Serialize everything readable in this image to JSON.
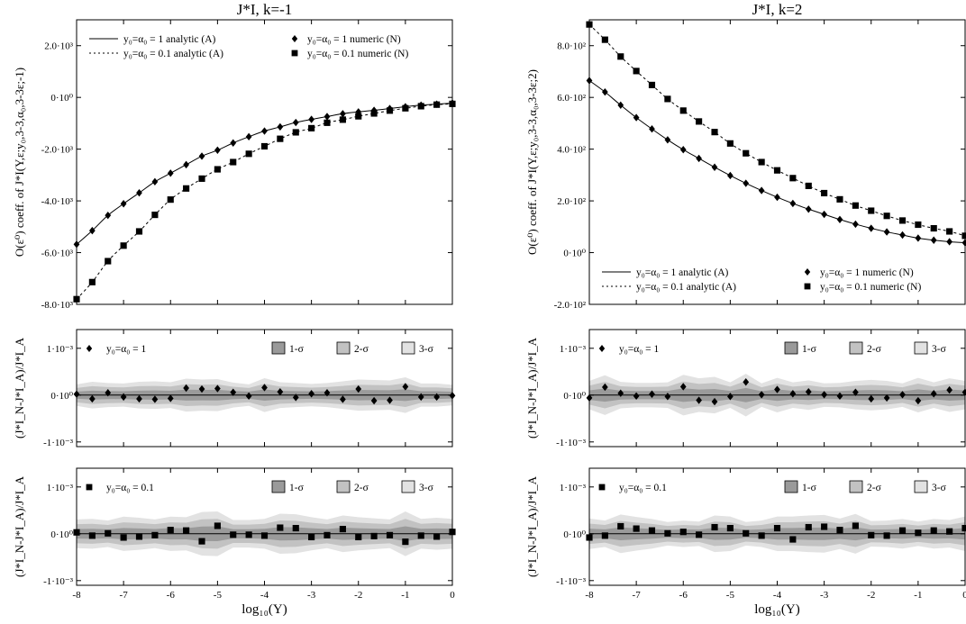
{
  "chart_data": [
    {
      "type": "line",
      "title": "J*I, k=-1",
      "xlabel": "",
      "ylabel": "O(ε⁰) coeff. of J*I(Y,ε;y₀,3-3,α₀,3-3ε;-1)",
      "xlim": [
        -8,
        0
      ],
      "ylim": [
        -8000,
        3000
      ],
      "yticks": [
        {
          "v": 2000,
          "label": "2.0·10³"
        },
        {
          "v": 0,
          "label": "0·10⁰"
        },
        {
          "v": -2000,
          "label": "-2.0·10³"
        },
        {
          "v": -4000,
          "label": "-4.0·10³"
        },
        {
          "v": -6000,
          "label": "-6.0·10³"
        },
        {
          "v": -8000,
          "label": "-8.0·10³"
        }
      ],
      "xticks": [],
      "legend_position": "top",
      "legend": [
        {
          "label": "y₀=α₀ = 1 analytic (A)",
          "style": "solid-line"
        },
        {
          "label": "y₀=α₀ = 0.1 analytic (A)",
          "style": "dotted-line"
        },
        {
          "label": "y₀=α₀ = 1 numeric (N)",
          "style": "diamond"
        },
        {
          "label": "y₀=α₀ = 0.1 numeric (N)",
          "style": "square"
        }
      ],
      "series": [
        {
          "name": "y₀=α₀ = 1 numeric (N)",
          "marker": "diamond",
          "line": "solid",
          "x": [
            -8,
            -7.667,
            -7.333,
            -7,
            -6.667,
            -6.333,
            -6,
            -5.667,
            -5.333,
            -5,
            -4.667,
            -4.333,
            -4,
            -3.667,
            -3.333,
            -3,
            -2.667,
            -2.333,
            -2,
            -1.667,
            -1.333,
            -1,
            -0.667,
            -0.333,
            0
          ],
          "y": [
            -5680,
            -5150,
            -4560,
            -4110,
            -3690,
            -3260,
            -2930,
            -2600,
            -2270,
            -2040,
            -1760,
            -1520,
            -1300,
            -1140,
            -970,
            -850,
            -740,
            -630,
            -560,
            -500,
            -430,
            -360,
            -300,
            -260,
            -220
          ]
        },
        {
          "name": "y₀=α₀ = 0.1 numeric (N)",
          "marker": "square",
          "line": "dotted",
          "x": [
            -8,
            -7.667,
            -7.333,
            -7,
            -6.667,
            -6.333,
            -6,
            -5.667,
            -5.333,
            -5,
            -4.667,
            -4.333,
            -4,
            -3.667,
            -3.333,
            -3,
            -2.667,
            -2.333,
            -2,
            -1.667,
            -1.333,
            -1,
            -0.667,
            -0.333,
            0
          ],
          "y": [
            -7800,
            -7140,
            -6330,
            -5730,
            -5180,
            -4540,
            -3950,
            -3520,
            -3140,
            -2780,
            -2500,
            -2180,
            -1890,
            -1600,
            -1350,
            -1190,
            -980,
            -860,
            -730,
            -620,
            -510,
            -420,
            -340,
            -280,
            -250
          ]
        }
      ]
    },
    {
      "type": "scatter",
      "title": "",
      "xlabel": "",
      "ylabel": "(J*I_N-J*I_A)/J*I_A",
      "xlim": [
        -8,
        0
      ],
      "ylim": [
        -1.1,
        1.4
      ],
      "y_scale_note": "values in units of 10⁻³",
      "yticks": [
        {
          "v": 1,
          "label": "1·10⁻³"
        },
        {
          "v": 0,
          "label": "0·10⁰"
        },
        {
          "v": -1,
          "label": "-1·10⁻³"
        }
      ],
      "xticks": [],
      "legend_position": "top",
      "legend": [
        {
          "label": "y₀=α₀ = 1",
          "style": "diamond"
        }
      ],
      "bands": [
        {
          "label": "1-σ",
          "color": "#9a9a9a"
        },
        {
          "label": "2-σ",
          "color": "#c2c2c2"
        },
        {
          "label": "3-σ",
          "color": "#e2e2e2"
        }
      ],
      "band_halfwidths": [
        0.07,
        0.14,
        0.21
      ],
      "series": [
        {
          "name": "y₀=α₀ = 1",
          "marker": "diamond",
          "x": [
            -8,
            -7.667,
            -7.333,
            -7,
            -6.667,
            -6.333,
            -6,
            -5.667,
            -5.333,
            -5,
            -4.667,
            -4.333,
            -4,
            -3.667,
            -3.333,
            -3,
            -2.667,
            -2.333,
            -2,
            -1.667,
            -1.333,
            -1,
            -0.667,
            -0.333,
            0
          ],
          "y": [
            0.02,
            -0.08,
            0.05,
            -0.04,
            -0.08,
            -0.09,
            -0.07,
            0.15,
            0.13,
            0.14,
            0.06,
            -0.02,
            0.16,
            0.07,
            -0.05,
            0.03,
            0.05,
            -0.09,
            0.13,
            -0.12,
            -0.11,
            0.18,
            -0.04,
            -0.04,
            -0.01
          ]
        }
      ]
    },
    {
      "type": "scatter",
      "title": "",
      "xlabel": "log₁₀(Y)",
      "ylabel": "(J*I_N-J*I_A)/J*I_A",
      "xlim": [
        -8,
        0
      ],
      "ylim": [
        -1.1,
        1.4
      ],
      "y_scale_note": "values in units of 10⁻³",
      "yticks": [
        {
          "v": 1,
          "label": "1·10⁻³"
        },
        {
          "v": 0,
          "label": "0·10⁰"
        },
        {
          "v": -1,
          "label": "-1·10⁻³"
        }
      ],
      "xticks": [
        {
          "v": -8,
          "label": "-8"
        },
        {
          "v": -7,
          "label": "-7"
        },
        {
          "v": -6,
          "label": "-6"
        },
        {
          "v": -5,
          "label": "-5"
        },
        {
          "v": -4,
          "label": "-4"
        },
        {
          "v": -3,
          "label": "-3"
        },
        {
          "v": -2,
          "label": "-2"
        },
        {
          "v": -1,
          "label": "-1"
        },
        {
          "v": 0,
          "label": "0"
        }
      ],
      "legend_position": "top",
      "legend": [
        {
          "label": "y₀=α₀ = 0.1",
          "style": "square"
        }
      ],
      "bands": [
        {
          "label": "1-σ",
          "color": "#9a9a9a"
        },
        {
          "label": "2-σ",
          "color": "#c2c2c2"
        },
        {
          "label": "3-σ",
          "color": "#e2e2e2"
        }
      ],
      "band_halfwidths": [
        0.09,
        0.18,
        0.27
      ],
      "series": [
        {
          "name": "y₀=α₀ = 0.1",
          "marker": "square",
          "x": [
            -8,
            -7.667,
            -7.333,
            -7,
            -6.667,
            -6.333,
            -6,
            -5.667,
            -5.333,
            -5,
            -4.667,
            -4.333,
            -4,
            -3.667,
            -3.333,
            -3,
            -2.667,
            -2.333,
            -2,
            -1.667,
            -1.333,
            -1,
            -0.667,
            -0.333,
            0
          ],
          "y": [
            0.03,
            -0.04,
            0.01,
            -0.08,
            -0.06,
            -0.03,
            0.08,
            0.07,
            -0.16,
            0.17,
            -0.02,
            -0.02,
            -0.04,
            0.13,
            0.12,
            -0.07,
            -0.03,
            0.1,
            -0.07,
            -0.05,
            -0.03,
            -0.17,
            -0.04,
            -0.06,
            0.04
          ]
        }
      ]
    },
    {
      "type": "line",
      "title": "J*I, k=2",
      "xlabel": "",
      "ylabel": "O(ε⁰) coeff. of J*I(Y,ε;y₀,3-3,α₀,3-3ε;2)",
      "xlim": [
        -8,
        0
      ],
      "ylim": [
        -200,
        900
      ],
      "yticks": [
        {
          "v": 800,
          "label": "8.0·10²"
        },
        {
          "v": 600,
          "label": "6.0·10²"
        },
        {
          "v": 400,
          "label": "4.0·10²"
        },
        {
          "v": 200,
          "label": "2.0·10²"
        },
        {
          "v": 0,
          "label": "0·10⁰"
        },
        {
          "v": -200,
          "label": "-2.0·10²"
        }
      ],
      "xticks": [],
      "legend_position": "bottom",
      "legend": [
        {
          "label": "y₀=α₀ = 1 analytic (A)",
          "style": "solid-line"
        },
        {
          "label": "y₀=α₀ = 0.1 analytic (A)",
          "style": "dotted-line"
        },
        {
          "label": "y₀=α₀ = 1 numeric (N)",
          "style": "diamond"
        },
        {
          "label": "y₀=α₀ = 0.1 numeric (N)",
          "style": "square"
        }
      ],
      "series": [
        {
          "name": "y₀=α₀ = 1 numeric (N)",
          "marker": "diamond",
          "line": "solid",
          "x": [
            -8,
            -7.667,
            -7.333,
            -7,
            -6.667,
            -6.333,
            -6,
            -5.667,
            -5.333,
            -5,
            -4.667,
            -4.333,
            -4,
            -3.667,
            -3.333,
            -3,
            -2.667,
            -2.333,
            -2,
            -1.667,
            -1.333,
            -1,
            -0.667,
            -0.333,
            0
          ],
          "y": [
            665,
            621,
            570,
            522,
            478,
            436,
            398,
            364,
            330,
            298,
            268,
            240,
            214,
            190,
            168,
            148,
            128,
            110,
            94,
            80,
            68,
            56,
            48,
            42,
            38
          ]
        },
        {
          "name": "y₀=α₀ = 0.1 numeric (N)",
          "marker": "square",
          "line": "dotted",
          "x": [
            -8,
            -7.667,
            -7.333,
            -7,
            -6.667,
            -6.333,
            -6,
            -5.667,
            -5.333,
            -5,
            -4.667,
            -4.333,
            -4,
            -3.667,
            -3.333,
            -3,
            -2.667,
            -2.333,
            -2,
            -1.667,
            -1.333,
            -1,
            -0.667,
            -0.333,
            0
          ],
          "y": [
            882,
            823,
            758,
            702,
            648,
            594,
            549,
            507,
            466,
            422,
            384,
            350,
            318,
            288,
            258,
            230,
            206,
            182,
            162,
            142,
            124,
            108,
            94,
            82,
            65
          ]
        }
      ]
    },
    {
      "type": "scatter",
      "title": "",
      "xlabel": "",
      "ylabel": "(J*I_N-J*I_A)/J*I_A",
      "xlim": [
        -8,
        0
      ],
      "ylim": [
        -1.1,
        1.4
      ],
      "y_scale_note": "values in units of 10⁻³",
      "yticks": [
        {
          "v": 1,
          "label": "1·10⁻³"
        },
        {
          "v": 0,
          "label": "0·10⁰"
        },
        {
          "v": -1,
          "label": "-1·10⁻³"
        }
      ],
      "xticks": [],
      "legend_position": "top",
      "legend": [
        {
          "label": "y₀=α₀ = 1",
          "style": "diamond"
        }
      ],
      "bands": [
        {
          "label": "1-σ",
          "color": "#9a9a9a"
        },
        {
          "label": "2-σ",
          "color": "#c2c2c2"
        },
        {
          "label": "3-σ",
          "color": "#e2e2e2"
        }
      ],
      "band_halfwidths": [
        0.08,
        0.16,
        0.24
      ],
      "series": [
        {
          "name": "y₀=α₀ = 1",
          "marker": "diamond",
          "x": [
            -8,
            -7.667,
            -7.333,
            -7,
            -6.667,
            -6.333,
            -6,
            -5.667,
            -5.333,
            -5,
            -4.667,
            -4.333,
            -4,
            -3.667,
            -3.333,
            -3,
            -2.667,
            -2.333,
            -2,
            -1.667,
            -1.333,
            -1,
            -0.667,
            -0.333,
            0
          ],
          "y": [
            -0.06,
            0.17,
            0.04,
            -0.02,
            0.02,
            -0.03,
            0.18,
            -0.11,
            -0.14,
            -0.03,
            0.28,
            0.01,
            0.12,
            0.03,
            0.07,
            0.01,
            -0.02,
            0.06,
            -0.08,
            -0.06,
            0.01,
            -0.12,
            0.03,
            0.11,
            0.06
          ]
        }
      ]
    },
    {
      "type": "scatter",
      "title": "",
      "xlabel": "log₁₀(Y)",
      "ylabel": "(J*I_N-J*I_A)/J*I_A",
      "xlim": [
        -8,
        0
      ],
      "ylim": [
        -1.1,
        1.4
      ],
      "y_scale_note": "values in units of 10⁻³",
      "yticks": [
        {
          "v": 1,
          "label": "1·10⁻³"
        },
        {
          "v": 0,
          "label": "0·10⁰"
        },
        {
          "v": -1,
          "label": "-1·10⁻³"
        }
      ],
      "xticks": [
        {
          "v": -8,
          "label": "-8"
        },
        {
          "v": -7,
          "label": "-7"
        },
        {
          "v": -6,
          "label": "-6"
        },
        {
          "v": -5,
          "label": "-5"
        },
        {
          "v": -4,
          "label": "-4"
        },
        {
          "v": -3,
          "label": "-3"
        },
        {
          "v": -2,
          "label": "-2"
        },
        {
          "v": -1,
          "label": "-1"
        },
        {
          "v": 0,
          "label": "0"
        }
      ],
      "legend_position": "top",
      "legend": [
        {
          "label": "y₀=α₀ = 0.1",
          "style": "square"
        }
      ],
      "bands": [
        {
          "label": "1-σ",
          "color": "#9a9a9a"
        },
        {
          "label": "2-σ",
          "color": "#c2c2c2"
        },
        {
          "label": "3-σ",
          "color": "#e2e2e2"
        }
      ],
      "band_halfwidths": [
        0.08,
        0.16,
        0.24
      ],
      "series": [
        {
          "name": "y₀=α₀ = 0.1",
          "marker": "square",
          "x": [
            -8,
            -7.667,
            -7.333,
            -7,
            -6.667,
            -6.333,
            -6,
            -5.667,
            -5.333,
            -5,
            -4.667,
            -4.333,
            -4,
            -3.667,
            -3.333,
            -3,
            -2.667,
            -2.333,
            -2,
            -1.667,
            -1.333,
            -1,
            -0.667,
            -0.333,
            0
          ],
          "y": [
            -0.08,
            -0.04,
            0.16,
            0.11,
            0.07,
            0.01,
            0.04,
            -0.02,
            0.14,
            0.12,
            0.01,
            -0.04,
            0.12,
            -0.12,
            0.14,
            0.15,
            0.08,
            0.17,
            -0.03,
            -0.04,
            0.07,
            0.02,
            0.07,
            0.05,
            0.12
          ]
        }
      ]
    }
  ]
}
